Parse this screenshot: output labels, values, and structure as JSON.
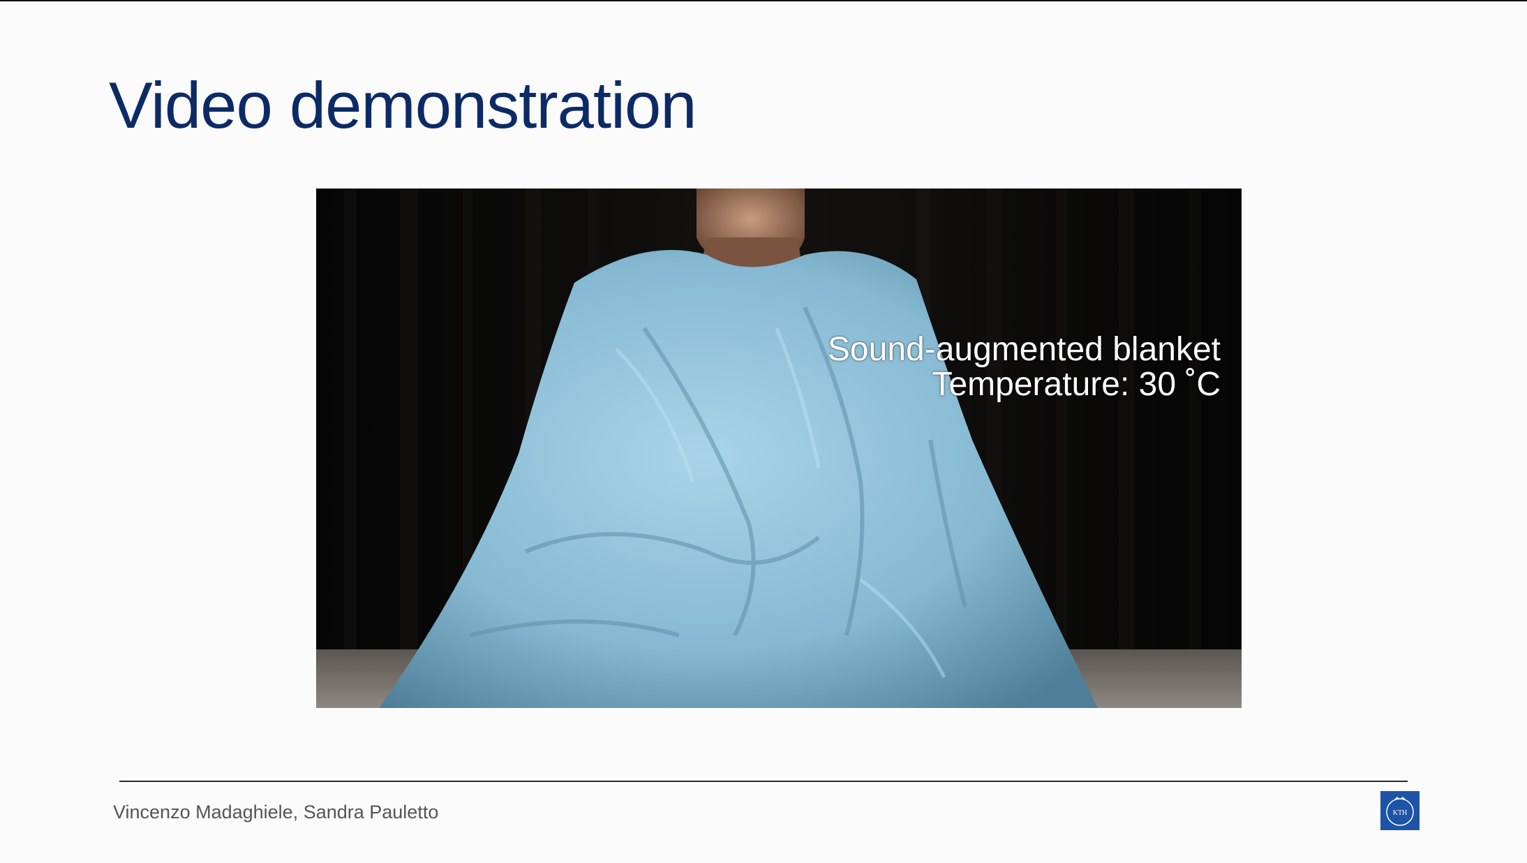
{
  "slide": {
    "title": "Video demonstration",
    "authors": "Vincenzo Madaghiele, Sandra Pauletto"
  },
  "video": {
    "caption_line1": "Sound-augmented blanket",
    "caption_line2": "Temperature: 30 ˚C"
  },
  "logo": {
    "text": "KTH",
    "icon": "kth-logo-icon",
    "color": "#1d54a7"
  },
  "colors": {
    "title": "#0c2a66",
    "background": "#fbfbfb",
    "blanket": "#8fbfd6"
  }
}
